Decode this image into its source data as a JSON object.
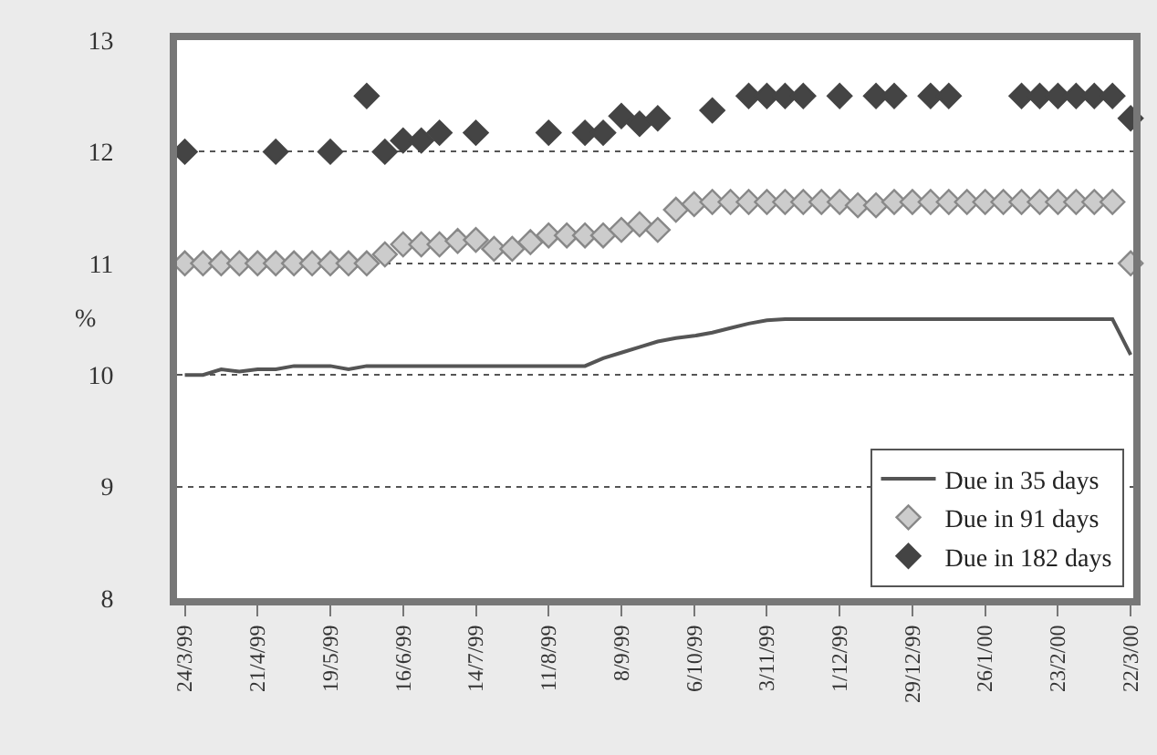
{
  "chart_data": {
    "type": "scatter",
    "ylabel": "%",
    "x": [
      "1999-03-24",
      "1999-03-31",
      "1999-04-07",
      "1999-04-14",
      "1999-04-21",
      "1999-04-28",
      "1999-05-05",
      "1999-05-12",
      "1999-05-19",
      "1999-05-26",
      "1999-06-02",
      "1999-06-09",
      "1999-06-16",
      "1999-06-23",
      "1999-06-30",
      "1999-07-07",
      "1999-07-14",
      "1999-07-21",
      "1999-07-28",
      "1999-08-04",
      "1999-08-11",
      "1999-08-18",
      "1999-08-25",
      "1999-09-01",
      "1999-09-08",
      "1999-09-15",
      "1999-09-22",
      "1999-09-29",
      "1999-10-06",
      "1999-10-13",
      "1999-10-20",
      "1999-10-27",
      "1999-11-03",
      "1999-11-10",
      "1999-11-17",
      "1999-11-24",
      "1999-12-01",
      "1999-12-08",
      "1999-12-15",
      "1999-12-22",
      "1999-12-29",
      "2000-01-05",
      "2000-01-12",
      "2000-01-19",
      "2000-01-26",
      "2000-02-02",
      "2000-02-09",
      "2000-02-16",
      "2000-02-23",
      "2000-03-01",
      "2000-03-08",
      "2000-03-15",
      "2000-03-22"
    ],
    "series": [
      {
        "name": "Due in 35 days",
        "type": "line",
        "color": "#555555",
        "marker": "none",
        "line_style": "solid",
        "values": [
          10.0,
          10.0,
          10.05,
          10.03,
          10.05,
          10.05,
          10.08,
          10.08,
          10.08,
          10.05,
          10.08,
          10.08,
          10.08,
          10.08,
          10.08,
          10.08,
          10.08,
          10.08,
          10.08,
          10.08,
          10.08,
          10.08,
          10.08,
          10.15,
          10.2,
          10.25,
          10.3,
          10.33,
          10.35,
          10.38,
          10.42,
          10.46,
          10.49,
          10.5,
          10.5,
          10.5,
          10.5,
          10.5,
          10.5,
          10.5,
          10.5,
          10.5,
          10.5,
          10.5,
          10.5,
          10.5,
          10.5,
          10.5,
          10.5,
          10.5,
          10.5,
          10.5,
          10.18
        ]
      },
      {
        "name": "Due in 91 days",
        "color": "#cccccc",
        "marker": "diamond",
        "values": [
          11.0,
          11.0,
          11.0,
          11.0,
          11.0,
          11.0,
          11.0,
          11.0,
          11.0,
          11.0,
          11.0,
          11.08,
          11.17,
          11.17,
          11.17,
          11.2,
          11.21,
          11.13,
          11.13,
          11.19,
          11.25,
          11.25,
          11.25,
          11.25,
          11.3,
          11.35,
          11.3,
          11.48,
          11.53,
          11.55,
          11.55,
          11.55,
          11.55,
          11.55,
          11.55,
          11.55,
          11.55,
          11.52,
          11.52,
          11.55,
          11.55,
          11.55,
          11.55,
          11.55,
          11.55,
          11.55,
          11.55,
          11.55,
          11.55,
          11.55,
          11.55,
          11.55,
          11.0
        ]
      },
      {
        "name": "Due in 182 days",
        "color": "#444444",
        "marker": "diamond",
        "values": [
          12.0,
          null,
          null,
          null,
          null,
          12.0,
          null,
          null,
          12.0,
          null,
          12.5,
          12.0,
          12.1,
          12.1,
          12.17,
          null,
          12.17,
          null,
          null,
          null,
          12.17,
          null,
          12.17,
          12.17,
          12.32,
          12.25,
          12.3,
          null,
          null,
          12.37,
          null,
          12.5,
          12.5,
          12.5,
          12.5,
          null,
          12.5,
          null,
          12.5,
          12.5,
          null,
          12.5,
          12.5,
          null,
          null,
          null,
          12.5,
          12.5,
          12.5,
          12.5,
          12.5,
          12.5,
          12.3
        ]
      }
    ],
    "xlim": [
      "1999-03-21",
      "2000-03-23"
    ],
    "xticks": [
      {
        "value": "1999-03-24",
        "label": "24/3/99"
      },
      {
        "value": "1999-04-21",
        "label": "21/4/99"
      },
      {
        "value": "1999-05-19",
        "label": "19/5/99"
      },
      {
        "value": "1999-06-16",
        "label": "16/6/99"
      },
      {
        "value": "1999-07-14",
        "label": "14/7/99"
      },
      {
        "value": "1999-08-11",
        "label": "11/8/99"
      },
      {
        "value": "1999-09-08",
        "label": "8/9/99"
      },
      {
        "value": "1999-10-06",
        "label": "6/10/99"
      },
      {
        "value": "1999-11-03",
        "label": "3/11/99"
      },
      {
        "value": "1999-12-01",
        "label": "1/12/99"
      },
      {
        "value": "1999-12-29",
        "label": "29/12/99"
      },
      {
        "value": "2000-01-26",
        "label": "26/1/00"
      },
      {
        "value": "2000-02-23",
        "label": "23/2/00"
      },
      {
        "value": "2000-03-22",
        "label": "22/3/00"
      }
    ],
    "ylim": [
      8,
      13
    ],
    "yticks": [
      8,
      9,
      10,
      11,
      12,
      13
    ],
    "grid": "y",
    "legend": "bottom right"
  }
}
